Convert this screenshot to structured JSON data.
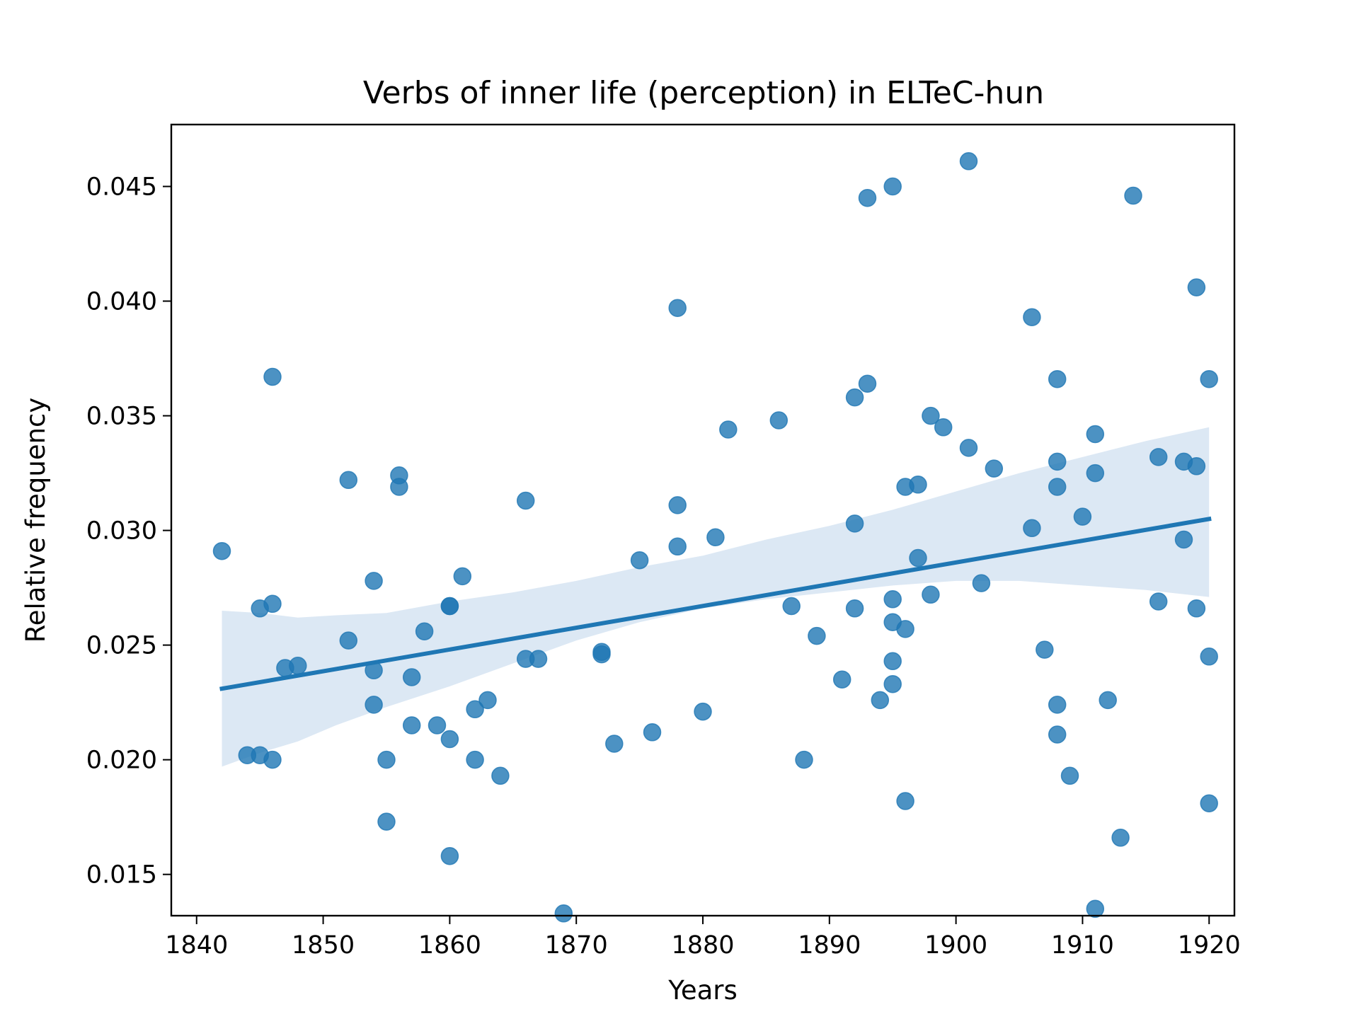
{
  "chart_data": {
    "type": "scatter",
    "title": "Verbs of inner life (perception) in ELTeC-hun",
    "xlabel": "Years",
    "ylabel": "Relative frequency",
    "xlim": [
      1838,
      1922
    ],
    "ylim": [
      0.0132,
      0.0477
    ],
    "xticks": [
      1840,
      1850,
      1860,
      1870,
      1880,
      1890,
      1900,
      1910,
      1920
    ],
    "yticks": [
      0.015,
      0.02,
      0.025,
      0.03,
      0.035,
      0.04,
      0.045
    ],
    "xtick_labels": [
      "1840",
      "1850",
      "1860",
      "1870",
      "1880",
      "1890",
      "1900",
      "1910",
      "1920"
    ],
    "ytick_labels": [
      "0.015",
      "0.020",
      "0.025",
      "0.030",
      "0.035",
      "0.040",
      "0.045"
    ],
    "grid": false,
    "colors": {
      "points": "#1f77b4",
      "regression": "#1f77b4",
      "ci_band": "#c5d9ec"
    },
    "points": [
      {
        "x": 1842,
        "y": 0.0291
      },
      {
        "x": 1844,
        "y": 0.0202
      },
      {
        "x": 1845,
        "y": 0.0266
      },
      {
        "x": 1845,
        "y": 0.0202
      },
      {
        "x": 1846,
        "y": 0.0367
      },
      {
        "x": 1846,
        "y": 0.0268
      },
      {
        "x": 1846,
        "y": 0.02
      },
      {
        "x": 1847,
        "y": 0.024
      },
      {
        "x": 1848,
        "y": 0.0241
      },
      {
        "x": 1852,
        "y": 0.0322
      },
      {
        "x": 1852,
        "y": 0.0252
      },
      {
        "x": 1854,
        "y": 0.0278
      },
      {
        "x": 1854,
        "y": 0.0239
      },
      {
        "x": 1854,
        "y": 0.0224
      },
      {
        "x": 1855,
        "y": 0.02
      },
      {
        "x": 1855,
        "y": 0.0173
      },
      {
        "x": 1856,
        "y": 0.0324
      },
      {
        "x": 1856,
        "y": 0.0319
      },
      {
        "x": 1857,
        "y": 0.0236
      },
      {
        "x": 1857,
        "y": 0.0215
      },
      {
        "x": 1858,
        "y": 0.0256
      },
      {
        "x": 1859,
        "y": 0.0215
      },
      {
        "x": 1860,
        "y": 0.0267
      },
      {
        "x": 1860,
        "y": 0.0267
      },
      {
        "x": 1860,
        "y": 0.0209
      },
      {
        "x": 1860,
        "y": 0.0158
      },
      {
        "x": 1861,
        "y": 0.028
      },
      {
        "x": 1862,
        "y": 0.0222
      },
      {
        "x": 1862,
        "y": 0.02
      },
      {
        "x": 1863,
        "y": 0.0226
      },
      {
        "x": 1864,
        "y": 0.0193
      },
      {
        "x": 1866,
        "y": 0.0313
      },
      {
        "x": 1866,
        "y": 0.0244
      },
      {
        "x": 1867,
        "y": 0.0244
      },
      {
        "x": 1869,
        "y": 0.0133
      },
      {
        "x": 1872,
        "y": 0.0247
      },
      {
        "x": 1872,
        "y": 0.0246
      },
      {
        "x": 1873,
        "y": 0.0207
      },
      {
        "x": 1875,
        "y": 0.0287
      },
      {
        "x": 1876,
        "y": 0.0212
      },
      {
        "x": 1878,
        "y": 0.0397
      },
      {
        "x": 1878,
        "y": 0.0311
      },
      {
        "x": 1878,
        "y": 0.0293
      },
      {
        "x": 1880,
        "y": 0.0221
      },
      {
        "x": 1881,
        "y": 0.0297
      },
      {
        "x": 1882,
        "y": 0.0344
      },
      {
        "x": 1886,
        "y": 0.0348
      },
      {
        "x": 1887,
        "y": 0.0267
      },
      {
        "x": 1888,
        "y": 0.02
      },
      {
        "x": 1889,
        "y": 0.0254
      },
      {
        "x": 1891,
        "y": 0.0235
      },
      {
        "x": 1892,
        "y": 0.0358
      },
      {
        "x": 1892,
        "y": 0.0303
      },
      {
        "x": 1892,
        "y": 0.0266
      },
      {
        "x": 1893,
        "y": 0.0445
      },
      {
        "x": 1893,
        "y": 0.0364
      },
      {
        "x": 1894,
        "y": 0.0226
      },
      {
        "x": 1895,
        "y": 0.045
      },
      {
        "x": 1895,
        "y": 0.027
      },
      {
        "x": 1895,
        "y": 0.026
      },
      {
        "x": 1895,
        "y": 0.0243
      },
      {
        "x": 1895,
        "y": 0.0233
      },
      {
        "x": 1896,
        "y": 0.0319
      },
      {
        "x": 1896,
        "y": 0.0257
      },
      {
        "x": 1896,
        "y": 0.0182
      },
      {
        "x": 1897,
        "y": 0.032
      },
      {
        "x": 1897,
        "y": 0.0288
      },
      {
        "x": 1898,
        "y": 0.035
      },
      {
        "x": 1898,
        "y": 0.0272
      },
      {
        "x": 1899,
        "y": 0.0345
      },
      {
        "x": 1901,
        "y": 0.0461
      },
      {
        "x": 1901,
        "y": 0.0336
      },
      {
        "x": 1902,
        "y": 0.0277
      },
      {
        "x": 1903,
        "y": 0.0327
      },
      {
        "x": 1906,
        "y": 0.0393
      },
      {
        "x": 1906,
        "y": 0.0301
      },
      {
        "x": 1907,
        "y": 0.0248
      },
      {
        "x": 1908,
        "y": 0.0366
      },
      {
        "x": 1908,
        "y": 0.033
      },
      {
        "x": 1908,
        "y": 0.0319
      },
      {
        "x": 1908,
        "y": 0.0224
      },
      {
        "x": 1908,
        "y": 0.0211
      },
      {
        "x": 1909,
        "y": 0.0193
      },
      {
        "x": 1910,
        "y": 0.0306
      },
      {
        "x": 1911,
        "y": 0.0342
      },
      {
        "x": 1911,
        "y": 0.0325
      },
      {
        "x": 1911,
        "y": 0.0135
      },
      {
        "x": 1912,
        "y": 0.0226
      },
      {
        "x": 1913,
        "y": 0.0166
      },
      {
        "x": 1914,
        "y": 0.0446
      },
      {
        "x": 1916,
        "y": 0.0332
      },
      {
        "x": 1916,
        "y": 0.0269
      },
      {
        "x": 1918,
        "y": 0.033
      },
      {
        "x": 1918,
        "y": 0.0296
      },
      {
        "x": 1919,
        "y": 0.0406
      },
      {
        "x": 1919,
        "y": 0.0328
      },
      {
        "x": 1919,
        "y": 0.0266
      },
      {
        "x": 1920,
        "y": 0.0366
      },
      {
        "x": 1920,
        "y": 0.0245
      },
      {
        "x": 1920,
        "y": 0.0181
      }
    ],
    "regression": {
      "x": [
        1842,
        1920
      ],
      "y": [
        0.0231,
        0.0305
      ]
    },
    "ci_band": [
      {
        "x": 1842,
        "lower": 0.0197,
        "upper": 0.0265
      },
      {
        "x": 1845,
        "lower": 0.0203,
        "upper": 0.0264
      },
      {
        "x": 1848,
        "lower": 0.0208,
        "upper": 0.0262
      },
      {
        "x": 1851,
        "lower": 0.0215,
        "upper": 0.0263
      },
      {
        "x": 1855,
        "lower": 0.0223,
        "upper": 0.0264
      },
      {
        "x": 1860,
        "lower": 0.0232,
        "upper": 0.0269
      },
      {
        "x": 1865,
        "lower": 0.0242,
        "upper": 0.0273
      },
      {
        "x": 1870,
        "lower": 0.0252,
        "upper": 0.0278
      },
      {
        "x": 1875,
        "lower": 0.026,
        "upper": 0.0284
      },
      {
        "x": 1880,
        "lower": 0.0266,
        "upper": 0.0289
      },
      {
        "x": 1885,
        "lower": 0.027,
        "upper": 0.0296
      },
      {
        "x": 1890,
        "lower": 0.0273,
        "upper": 0.0302
      },
      {
        "x": 1895,
        "lower": 0.0276,
        "upper": 0.0309
      },
      {
        "x": 1900,
        "lower": 0.0278,
        "upper": 0.0317
      },
      {
        "x": 1905,
        "lower": 0.0278,
        "upper": 0.0325
      },
      {
        "x": 1910,
        "lower": 0.0276,
        "upper": 0.0332
      },
      {
        "x": 1915,
        "lower": 0.0274,
        "upper": 0.0339
      },
      {
        "x": 1920,
        "lower": 0.0271,
        "upper": 0.0345
      }
    ]
  }
}
